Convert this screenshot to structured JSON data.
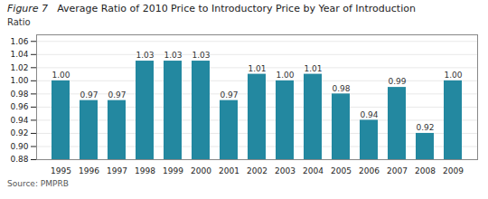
{
  "chart_data": {
    "type": "bar",
    "title": "Average Ratio of 2010 Price to Introductory Price by Year of Introduction",
    "ylabel": "Ratio",
    "annotations": [
      "Figure 7",
      "Source: PMPRB"
    ],
    "categories": [
      "1995",
      "1996",
      "1997",
      "1998",
      "1999",
      "2000",
      "2001",
      "2002",
      "2003",
      "2004",
      "2005",
      "2006",
      "2007",
      "2008",
      "2009"
    ],
    "values": [
      1.0,
      0.97,
      0.97,
      1.03,
      1.03,
      1.03,
      0.97,
      1.01,
      1.0,
      1.01,
      0.98,
      0.94,
      0.99,
      0.92,
      1.0
    ],
    "value_labels": [
      "1.00",
      "0.97",
      "0.97",
      "1.03",
      "1.03",
      "1.03",
      "0.97",
      "1.01",
      "1.00",
      "1.01",
      "0.98",
      "0.94",
      "0.99",
      "0.92",
      "1.00"
    ],
    "data_labels": true,
    "color": "#2388a0",
    "ylim": [
      0.88,
      1.07
    ],
    "yticks": [
      0.88,
      {
        "value": 0.9,
        "label": "0.90"
      },
      0.92,
      0.94,
      0.96,
      0.98,
      {
        "value": 1.0,
        "label": "1.00"
      },
      1.02,
      1.04,
      1.06
    ],
    "grid": true
  }
}
